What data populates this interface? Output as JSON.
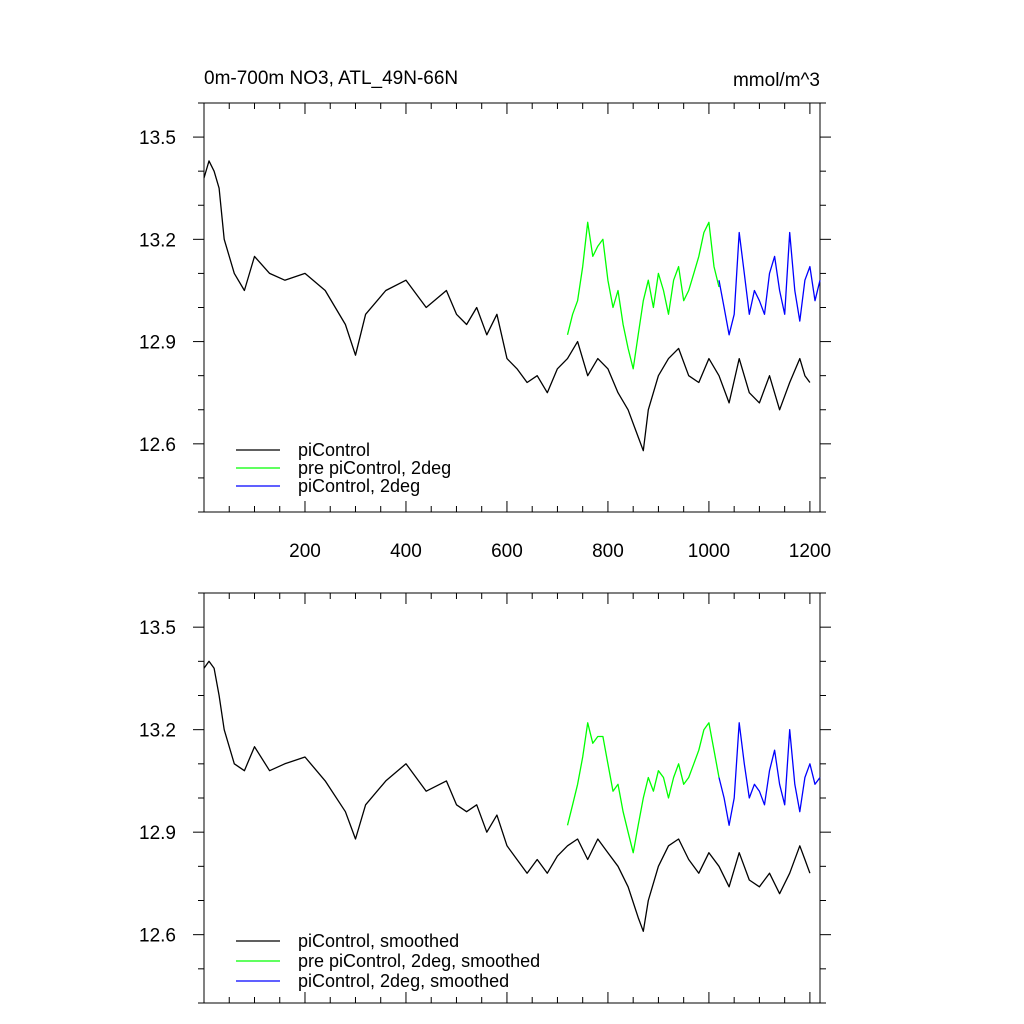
{
  "colors": {
    "piControl": "#000000",
    "pre_piControl": "#00ff00",
    "piControl_2deg": "#0000ff"
  },
  "chart_data": [
    {
      "type": "line",
      "title": "0m-700m NO3, ATL_49N-66N",
      "units": "mmol/m^3",
      "xlabel": "",
      "ylabel": "",
      "xlim": [
        0,
        1220
      ],
      "ylim": [
        12.4,
        13.6
      ],
      "xticks": [
        200,
        400,
        600,
        800,
        1000,
        1200
      ],
      "xtick_labels": [
        "200",
        "400",
        "600",
        "800",
        "1000",
        "1200"
      ],
      "yticks": [
        12.6,
        12.9,
        13.2,
        13.5
      ],
      "ytick_labels": [
        "12.6",
        "12.9",
        "13.2",
        "13.5"
      ],
      "grid": false,
      "legend_position": "bottom-left",
      "series": [
        {
          "name": "piControl",
          "color": "#000000",
          "x": [
            0,
            10,
            20,
            30,
            40,
            60,
            80,
            100,
            130,
            160,
            200,
            240,
            280,
            300,
            320,
            360,
            400,
            440,
            480,
            500,
            520,
            540,
            560,
            580,
            600,
            620,
            640,
            660,
            680,
            700,
            720,
            740,
            760,
            780,
            800,
            820,
            840,
            860,
            870,
            880,
            900,
            920,
            940,
            960,
            980,
            1000,
            1020,
            1040,
            1060,
            1080,
            1100,
            1120,
            1140,
            1160,
            1180,
            1190,
            1200
          ],
          "values": [
            13.38,
            13.43,
            13.4,
            13.35,
            13.2,
            13.1,
            13.05,
            13.15,
            13.1,
            13.08,
            13.1,
            13.05,
            12.95,
            12.86,
            12.98,
            13.05,
            13.08,
            13.0,
            13.05,
            12.98,
            12.95,
            13.0,
            12.92,
            12.98,
            12.85,
            12.82,
            12.78,
            12.8,
            12.75,
            12.82,
            12.85,
            12.9,
            12.8,
            12.85,
            12.82,
            12.75,
            12.7,
            12.62,
            12.58,
            12.7,
            12.8,
            12.85,
            12.88,
            12.8,
            12.78,
            12.85,
            12.8,
            12.72,
            12.85,
            12.75,
            12.72,
            12.8,
            12.7,
            12.78,
            12.85,
            12.8,
            12.78
          ]
        },
        {
          "name": "pre piControl, 2deg",
          "color": "#00ff00",
          "x": [
            720,
            730,
            740,
            750,
            760,
            770,
            780,
            790,
            800,
            810,
            820,
            830,
            840,
            850,
            860,
            870,
            880,
            890,
            900,
            910,
            920,
            930,
            940,
            950,
            960,
            970,
            980,
            990,
            1000,
            1010,
            1020
          ],
          "values": [
            12.92,
            12.98,
            13.02,
            13.12,
            13.25,
            13.15,
            13.18,
            13.2,
            13.08,
            13.0,
            13.05,
            12.95,
            12.88,
            12.82,
            12.92,
            13.02,
            13.08,
            13.0,
            13.1,
            13.05,
            12.98,
            13.08,
            13.12,
            13.02,
            13.05,
            13.1,
            13.15,
            13.22,
            13.25,
            13.12,
            13.06
          ]
        },
        {
          "name": "piControl, 2deg",
          "color": "#0000ff",
          "x": [
            1020,
            1030,
            1040,
            1050,
            1060,
            1070,
            1080,
            1090,
            1100,
            1110,
            1120,
            1130,
            1140,
            1150,
            1160,
            1170,
            1180,
            1190,
            1200,
            1210,
            1220
          ],
          "values": [
            13.08,
            13.0,
            12.92,
            12.98,
            13.22,
            13.1,
            12.98,
            13.05,
            13.02,
            12.98,
            13.1,
            13.15,
            13.05,
            12.98,
            13.22,
            13.05,
            12.96,
            13.08,
            13.12,
            13.02,
            13.08
          ]
        }
      ]
    },
    {
      "type": "line",
      "title": "",
      "xlabel": "",
      "ylabel": "",
      "xlim": [
        0,
        1220
      ],
      "ylim": [
        12.4,
        13.6
      ],
      "yticks": [
        12.6,
        12.9,
        13.2,
        13.5
      ],
      "ytick_labels": [
        "12.6",
        "12.9",
        "13.2",
        "13.5"
      ],
      "grid": false,
      "legend_position": "bottom-left",
      "series": [
        {
          "name": "piControl, smoothed",
          "color": "#000000",
          "x": [
            0,
            10,
            20,
            30,
            40,
            60,
            80,
            100,
            130,
            160,
            200,
            240,
            280,
            300,
            320,
            360,
            400,
            440,
            480,
            500,
            520,
            540,
            560,
            580,
            600,
            620,
            640,
            660,
            680,
            700,
            720,
            740,
            760,
            780,
            800,
            820,
            840,
            860,
            870,
            880,
            900,
            920,
            940,
            960,
            980,
            1000,
            1020,
            1040,
            1060,
            1080,
            1100,
            1120,
            1140,
            1160,
            1180,
            1190,
            1200
          ],
          "values": [
            13.38,
            13.4,
            13.38,
            13.3,
            13.2,
            13.1,
            13.08,
            13.15,
            13.08,
            13.1,
            13.12,
            13.05,
            12.96,
            12.88,
            12.98,
            13.05,
            13.1,
            13.02,
            13.05,
            12.98,
            12.96,
            12.98,
            12.9,
            12.95,
            12.86,
            12.82,
            12.78,
            12.82,
            12.78,
            12.83,
            12.86,
            12.88,
            12.82,
            12.88,
            12.84,
            12.8,
            12.74,
            12.65,
            12.61,
            12.7,
            12.8,
            12.86,
            12.88,
            12.82,
            12.78,
            12.84,
            12.8,
            12.74,
            12.84,
            12.76,
            12.74,
            12.78,
            12.72,
            12.78,
            12.86,
            12.82,
            12.78
          ]
        },
        {
          "name": "pre piControl, 2deg, smoothed",
          "color": "#00ff00",
          "x": [
            720,
            730,
            740,
            750,
            760,
            770,
            780,
            790,
            800,
            810,
            820,
            830,
            840,
            850,
            860,
            870,
            880,
            890,
            900,
            910,
            920,
            930,
            940,
            950,
            960,
            970,
            980,
            990,
            1000,
            1010,
            1020
          ],
          "values": [
            12.92,
            12.98,
            13.04,
            13.12,
            13.22,
            13.16,
            13.18,
            13.18,
            13.1,
            13.02,
            13.04,
            12.96,
            12.9,
            12.84,
            12.92,
            13.0,
            13.06,
            13.02,
            13.08,
            13.06,
            13.0,
            13.06,
            13.1,
            13.04,
            13.06,
            13.1,
            13.14,
            13.2,
            13.22,
            13.14,
            13.06
          ]
        },
        {
          "name": "piControl, 2deg, smoothed",
          "color": "#0000ff",
          "x": [
            1020,
            1030,
            1040,
            1050,
            1060,
            1070,
            1080,
            1090,
            1100,
            1110,
            1120,
            1130,
            1140,
            1150,
            1160,
            1170,
            1180,
            1190,
            1200,
            1210,
            1220
          ],
          "values": [
            13.06,
            13.0,
            12.92,
            13.0,
            13.22,
            13.1,
            13.0,
            13.04,
            13.02,
            12.98,
            13.08,
            13.14,
            13.04,
            12.98,
            13.2,
            13.04,
            12.96,
            13.06,
            13.1,
            13.04,
            13.06
          ]
        }
      ]
    }
  ]
}
